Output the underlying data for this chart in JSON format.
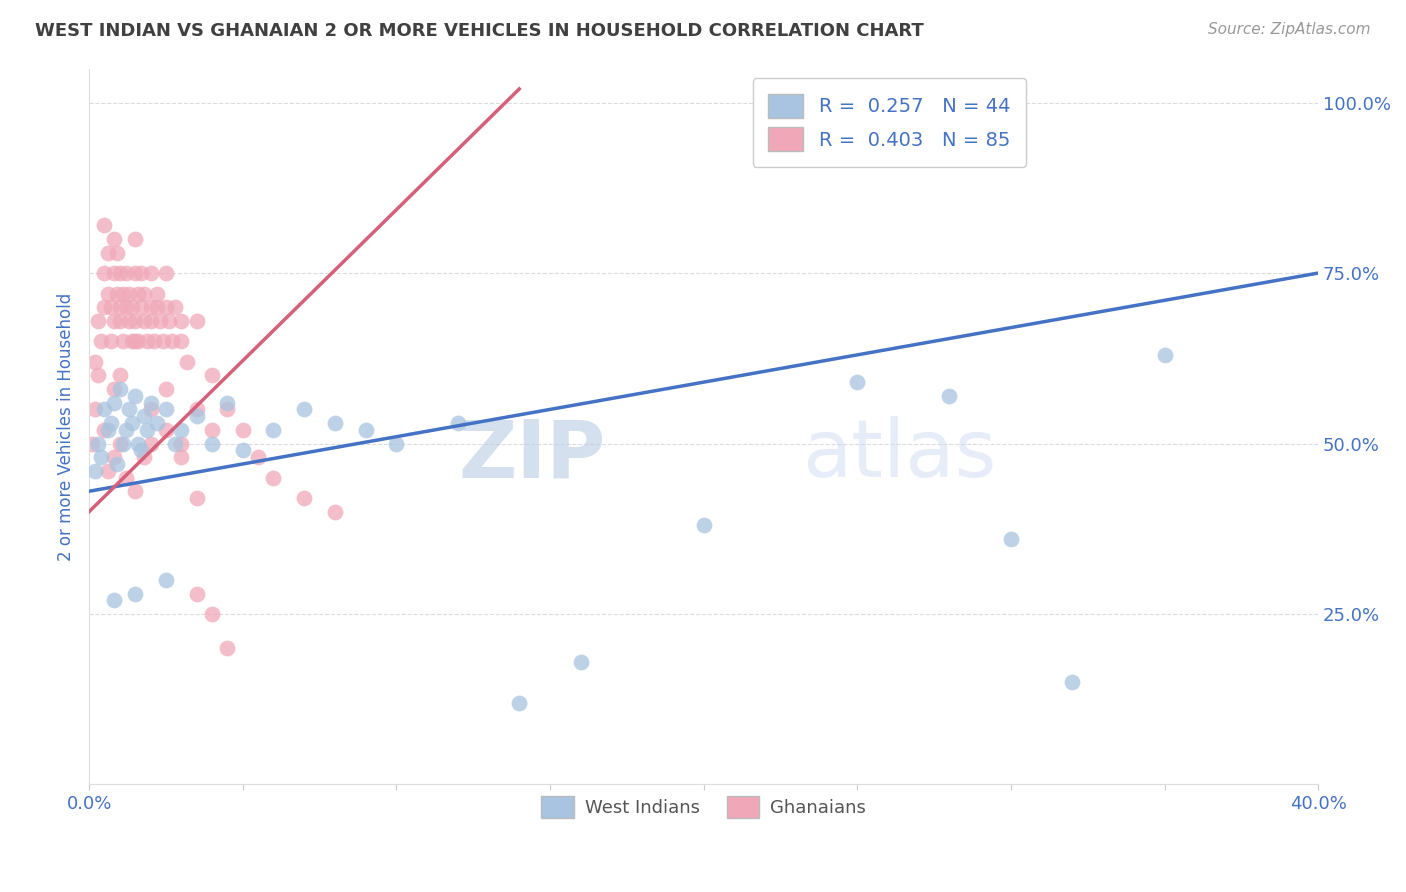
{
  "title": "WEST INDIAN VS GHANAIAN 2 OR MORE VEHICLES IN HOUSEHOLD CORRELATION CHART",
  "source": "Source: ZipAtlas.com",
  "ylabel": "2 or more Vehicles in Household",
  "xlim": [
    0.0,
    0.4
  ],
  "ylim": [
    0.0,
    1.05
  ],
  "xtick_vals": [
    0.0,
    0.05,
    0.1,
    0.15,
    0.2,
    0.25,
    0.3,
    0.35,
    0.4
  ],
  "xtick_labels": [
    "0.0%",
    "",
    "",
    "",
    "",
    "",
    "",
    "",
    "40.0%"
  ],
  "ytick_vals": [
    0.0,
    0.25,
    0.5,
    0.75,
    1.0
  ],
  "ytick_labels": [
    "",
    "25.0%",
    "50.0%",
    "75.0%",
    "100.0%"
  ],
  "grid_color": "#cccccc",
  "background_color": "#ffffff",
  "west_indians_color": "#a8c4e0",
  "ghanaians_color": "#f0a8b8",
  "west_indians_line_color": "#4472c4",
  "ghanaians_line_color": "#d4607a",
  "title_color": "#404040",
  "axis_label_color": "#4472c4",
  "tick_label_color": "#4472c4",
  "legend_r_west": "0.257",
  "legend_n_west": "44",
  "legend_r_ghana": "0.403",
  "legend_n_ghana": "85",
  "watermark_zip": "ZIP",
  "watermark_atlas": "atlas",
  "blue_line_x0": 0.0,
  "blue_line_y0": 0.43,
  "blue_line_x1": 0.4,
  "blue_line_y1": 0.75,
  "pink_line_x0": 0.0,
  "pink_line_y0": 0.4,
  "pink_line_x1": 0.14,
  "pink_line_y1": 1.02,
  "west_indians_x": [
    0.002,
    0.003,
    0.004,
    0.005,
    0.006,
    0.007,
    0.008,
    0.009,
    0.01,
    0.011,
    0.012,
    0.013,
    0.014,
    0.015,
    0.016,
    0.017,
    0.018,
    0.019,
    0.02,
    0.022,
    0.025,
    0.028,
    0.03,
    0.035,
    0.04,
    0.045,
    0.05,
    0.06,
    0.07,
    0.08,
    0.09,
    0.1,
    0.12,
    0.14,
    0.16,
    0.2,
    0.25,
    0.28,
    0.3,
    0.32,
    0.35,
    0.008,
    0.015,
    0.025
  ],
  "west_indians_y": [
    0.46,
    0.5,
    0.48,
    0.55,
    0.52,
    0.53,
    0.56,
    0.47,
    0.58,
    0.5,
    0.52,
    0.55,
    0.53,
    0.57,
    0.5,
    0.49,
    0.54,
    0.52,
    0.56,
    0.53,
    0.55,
    0.5,
    0.52,
    0.54,
    0.5,
    0.56,
    0.49,
    0.52,
    0.55,
    0.53,
    0.52,
    0.5,
    0.53,
    0.12,
    0.18,
    0.38,
    0.59,
    0.57,
    0.36,
    0.15,
    0.63,
    0.27,
    0.28,
    0.3
  ],
  "ghanaians_x": [
    0.001,
    0.002,
    0.002,
    0.003,
    0.003,
    0.004,
    0.005,
    0.005,
    0.005,
    0.006,
    0.006,
    0.007,
    0.007,
    0.008,
    0.008,
    0.008,
    0.009,
    0.009,
    0.01,
    0.01,
    0.01,
    0.011,
    0.011,
    0.012,
    0.012,
    0.013,
    0.013,
    0.014,
    0.014,
    0.015,
    0.015,
    0.015,
    0.016,
    0.016,
    0.017,
    0.017,
    0.018,
    0.018,
    0.019,
    0.02,
    0.02,
    0.02,
    0.021,
    0.022,
    0.022,
    0.023,
    0.024,
    0.025,
    0.025,
    0.026,
    0.027,
    0.028,
    0.03,
    0.03,
    0.032,
    0.035,
    0.035,
    0.04,
    0.04,
    0.045,
    0.05,
    0.055,
    0.06,
    0.07,
    0.08,
    0.006,
    0.008,
    0.01,
    0.012,
    0.015,
    0.018,
    0.02,
    0.025,
    0.03,
    0.005,
    0.008,
    0.01,
    0.015,
    0.02,
    0.025,
    0.03,
    0.035,
    0.035,
    0.04,
    0.045
  ],
  "ghanaians_y": [
    0.5,
    0.55,
    0.62,
    0.6,
    0.68,
    0.65,
    0.7,
    0.75,
    0.82,
    0.72,
    0.78,
    0.65,
    0.7,
    0.68,
    0.75,
    0.8,
    0.72,
    0.78,
    0.7,
    0.75,
    0.68,
    0.72,
    0.65,
    0.7,
    0.75,
    0.68,
    0.72,
    0.65,
    0.7,
    0.68,
    0.75,
    0.8,
    0.72,
    0.65,
    0.7,
    0.75,
    0.68,
    0.72,
    0.65,
    0.7,
    0.75,
    0.68,
    0.65,
    0.7,
    0.72,
    0.68,
    0.65,
    0.7,
    0.75,
    0.68,
    0.65,
    0.7,
    0.68,
    0.65,
    0.62,
    0.68,
    0.55,
    0.6,
    0.52,
    0.55,
    0.52,
    0.48,
    0.45,
    0.42,
    0.4,
    0.46,
    0.48,
    0.5,
    0.45,
    0.43,
    0.48,
    0.5,
    0.52,
    0.48,
    0.52,
    0.58,
    0.6,
    0.65,
    0.55,
    0.58,
    0.5,
    0.42,
    0.28,
    0.25,
    0.2
  ]
}
